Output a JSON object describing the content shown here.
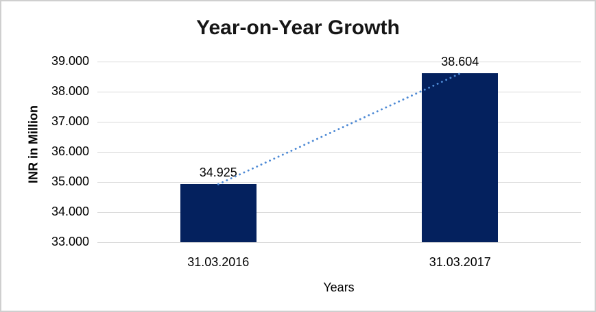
{
  "chart_data": {
    "type": "bar",
    "title": "Year-on-Year Growth",
    "xlabel": "Years",
    "ylabel": "INR in Million",
    "categories": [
      "31.03.2016",
      "31.03.2017"
    ],
    "values": [
      34.925,
      38.604
    ],
    "value_labels": [
      "34.925",
      "38.604"
    ],
    "y_ticks": [
      {
        "value": 33,
        "label": "33.000"
      },
      {
        "value": 34,
        "label": "34.000"
      },
      {
        "value": 35,
        "label": "35.000"
      },
      {
        "value": 36,
        "label": "36.000"
      },
      {
        "value": 37,
        "label": "37.000"
      },
      {
        "value": 38,
        "label": "38.000"
      },
      {
        "value": 39,
        "label": "39.000"
      }
    ],
    "ylim": [
      33,
      39
    ],
    "grid": true,
    "legend": "none",
    "trendline": {
      "style": "dotted",
      "from": {
        "category": "31.03.2016",
        "value": 34.925
      },
      "to": {
        "category": "31.03.2017",
        "value": 38.604
      }
    },
    "colors": {
      "bar": "#04215e",
      "trendline": "#4e8ad5",
      "gridline": "#d9d9d9",
      "title_text": "#161616",
      "axis_text": "#000000"
    }
  }
}
